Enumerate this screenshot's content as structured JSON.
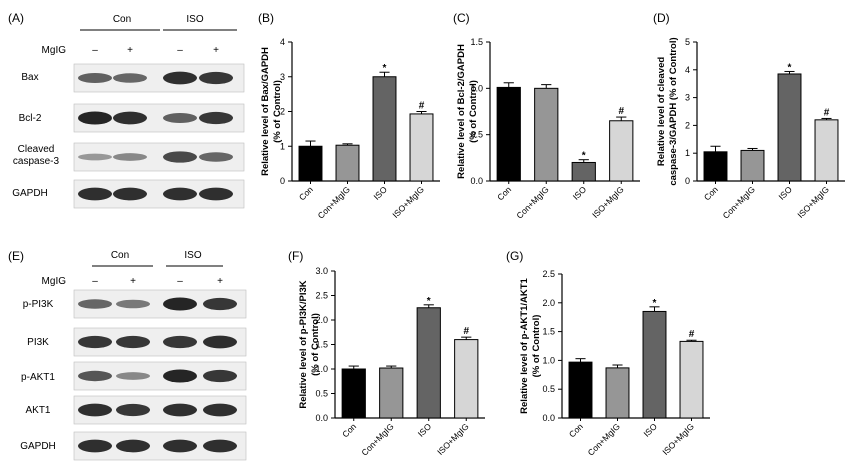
{
  "colors": {
    "bar_fills": [
      "#000000",
      "#969696",
      "#646464",
      "#d6d6d6"
    ],
    "bar_stroke": "#000000",
    "blot_background": "#efefef",
    "band": "#161616"
  },
  "blots": [
    {
      "panel_label": "(A)",
      "group_headers": [
        "Con",
        "ISO"
      ],
      "treatment_label": "MgIG",
      "lane_signs": [
        "–",
        "+",
        "–",
        "+"
      ],
      "rows": [
        {
          "label": "Bax",
          "intensities": [
            0.55,
            0.5,
            0.85,
            0.8
          ]
        },
        {
          "label": "Bcl-2",
          "intensities": [
            0.9,
            0.85,
            0.55,
            0.8
          ]
        },
        {
          "label_lines": [
            "Cleaved",
            "caspase-3"
          ],
          "intensities": [
            0.2,
            0.3,
            0.7,
            0.5
          ]
        },
        {
          "label": "GAPDH",
          "intensities": [
            0.85,
            0.85,
            0.85,
            0.85
          ]
        }
      ]
    },
    {
      "panel_label": "(E)",
      "group_headers": [
        "Con",
        "ISO"
      ],
      "treatment_label": "MgIG",
      "lane_signs": [
        "–",
        "+",
        "–",
        "+"
      ],
      "rows": [
        {
          "label": "p-PI3K",
          "intensities": [
            0.5,
            0.4,
            0.9,
            0.8
          ]
        },
        {
          "label": "PI3K",
          "intensities": [
            0.8,
            0.8,
            0.8,
            0.85
          ]
        },
        {
          "label": "p-AKT1",
          "intensities": [
            0.6,
            0.3,
            0.9,
            0.8
          ]
        },
        {
          "label": "AKT1",
          "intensities": [
            0.85,
            0.8,
            0.85,
            0.85
          ]
        },
        {
          "label": "GAPDH",
          "intensities": [
            0.85,
            0.85,
            0.85,
            0.85
          ]
        }
      ]
    }
  ],
  "chart_data": [
    {
      "panel_label": "(B)",
      "type": "bar",
      "categories": [
        "Con",
        "Con+MgIG",
        "ISO",
        "ISO+MgIG"
      ],
      "values": [
        1.0,
        1.03,
        3.0,
        1.93
      ],
      "errors": [
        0.15,
        0.04,
        0.13,
        0.07
      ],
      "marks": [
        "",
        "",
        "*",
        "#"
      ],
      "ylabel_lines": [
        "Relative level of Bax/GAPDH",
        "(% of Control)"
      ],
      "ylim": [
        0,
        4
      ],
      "yticks": [
        "0",
        "1",
        "2",
        "3",
        "4"
      ]
    },
    {
      "panel_label": "(C)",
      "type": "bar",
      "categories": [
        "Con",
        "Con+MgIG",
        "ISO",
        "ISO+MgIG"
      ],
      "values": [
        1.01,
        1.0,
        0.2,
        0.65
      ],
      "errors": [
        0.05,
        0.04,
        0.03,
        0.04
      ],
      "marks": [
        "",
        "",
        "*",
        "#"
      ],
      "ylabel_lines": [
        "Relative level of Bcl-2/GAPDH",
        "(% of Control)"
      ],
      "ylim": [
        0,
        1.5
      ],
      "yticks": [
        "0.0",
        "0.5",
        "1.0",
        "1.5"
      ]
    },
    {
      "panel_label": "(D)",
      "type": "bar",
      "categories": [
        "Con",
        "Con+MgIG",
        "ISO",
        "ISO+MgIG"
      ],
      "values": [
        1.05,
        1.1,
        3.85,
        2.2
      ],
      "errors": [
        0.2,
        0.07,
        0.09,
        0.05
      ],
      "marks": [
        "",
        "",
        "*",
        "#"
      ],
      "ylabel_lines": [
        "Relative level of cleaved",
        "caspase-3/GAPDH (% of Control)"
      ],
      "ylim": [
        0,
        5
      ],
      "yticks": [
        "0",
        "1",
        "2",
        "3",
        "4",
        "5"
      ]
    },
    {
      "panel_label": "(F)",
      "type": "bar",
      "categories": [
        "Con",
        "Con+MgIG",
        "ISO",
        "ISO+MgIG"
      ],
      "values": [
        1.0,
        1.02,
        2.25,
        1.6
      ],
      "errors": [
        0.06,
        0.04,
        0.06,
        0.05
      ],
      "marks": [
        "",
        "",
        "*",
        "#"
      ],
      "ylabel_lines": [
        "Relative level of p-PI3K/PI3K",
        "(% of Control)"
      ],
      "ylim": [
        0,
        3.0
      ],
      "yticks": [
        "0.0",
        "0.5",
        "1.0",
        "1.5",
        "2.0",
        "2.5",
        "3.0"
      ]
    },
    {
      "panel_label": "(G)",
      "type": "bar",
      "categories": [
        "Con",
        "Con+MgIG",
        "ISO",
        "ISO+MgIG"
      ],
      "values": [
        0.97,
        0.87,
        1.85,
        1.33
      ],
      "errors": [
        0.06,
        0.05,
        0.08,
        0.02
      ],
      "marks": [
        "",
        "",
        "*",
        "#"
      ],
      "ylabel_lines": [
        "Relative level of p-AKT1/AKT1",
        "(% of Control)"
      ],
      "ylim": [
        0,
        2.5
      ],
      "yticks": [
        "0.0",
        "0.5",
        "1.0",
        "1.5",
        "2.0",
        "2.5"
      ]
    }
  ]
}
